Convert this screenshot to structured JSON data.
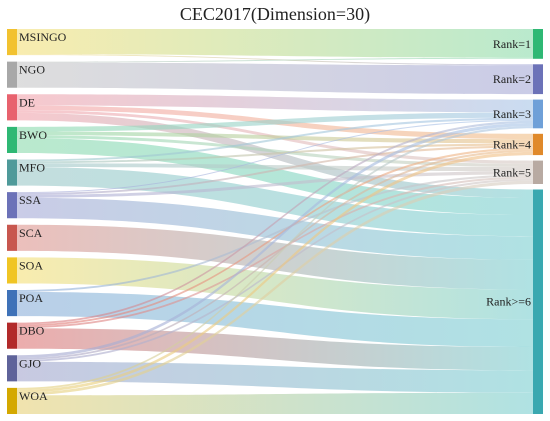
{
  "title": "CEC2017(Dimension=30)",
  "sources": [
    {
      "id": "MSINGO",
      "label": "MSINGO",
      "bar": "#f2c230",
      "band": "#f4e07e"
    },
    {
      "id": "NGO",
      "label": "NGO",
      "bar": "#a8a8a8",
      "band": "#c9c9c9"
    },
    {
      "id": "DE",
      "label": "DE",
      "bar": "#e8626e",
      "band": "#f2a6ae"
    },
    {
      "id": "BWO",
      "label": "BWO",
      "bar": "#2fb874",
      "band": "#8fdcaf"
    },
    {
      "id": "MFO",
      "label": "MFO",
      "bar": "#4f9a9a",
      "band": "#9fcaca"
    },
    {
      "id": "SSA",
      "label": "SSA",
      "bar": "#6c72b8",
      "band": "#a9acd8"
    },
    {
      "id": "SCA",
      "label": "SCA",
      "bar": "#c8574f",
      "band": "#e09892"
    },
    {
      "id": "SOA",
      "label": "SOA",
      "bar": "#f0c524",
      "band": "#f5e07c"
    },
    {
      "id": "POA",
      "label": "POA",
      "bar": "#3f72b8",
      "band": "#8fb1db"
    },
    {
      "id": "DBO",
      "label": "DBO",
      "bar": "#b22a2a",
      "band": "#e07a7a"
    },
    {
      "id": "GJO",
      "label": "GJO",
      "bar": "#5f639a",
      "band": "#a6a8cf"
    },
    {
      "id": "WOA",
      "label": "WOA",
      "bar": "#d4a800",
      "band": "#e8d27c"
    }
  ],
  "targets": [
    {
      "id": "R1",
      "label": "Rank=1",
      "bar": "#2fb874",
      "band": "#8fdcaf"
    },
    {
      "id": "R2",
      "label": "Rank=2",
      "bar": "#6c72b8",
      "band": "#a9acd8"
    },
    {
      "id": "R3",
      "label": "Rank=3",
      "bar": "#6fa0d8",
      "band": "#a9c6e8"
    },
    {
      "id": "R4",
      "label": "Rank=4",
      "bar": "#e0892a",
      "band": "#f1c08a"
    },
    {
      "id": "R5",
      "label": "Rank=5",
      "bar": "#b8aaa2",
      "band": "#d6ccc6"
    },
    {
      "id": "R6",
      "label": "Rank>=6",
      "bar": "#3aa8b0",
      "band": "#7fd0d2"
    }
  ],
  "links": [
    {
      "source": "MSINGO",
      "target": "R1",
      "value": 27
    },
    {
      "source": "MSINGO",
      "target": "R2",
      "value": 1
    },
    {
      "source": "NGO",
      "target": "R2",
      "value": 27
    },
    {
      "source": "NGO",
      "target": "R1",
      "value": 1
    },
    {
      "source": "DE",
      "target": "R3",
      "value": 12
    },
    {
      "source": "DE",
      "target": "R4",
      "value": 5
    },
    {
      "source": "DE",
      "target": "R5",
      "value": 3
    },
    {
      "source": "DE",
      "target": "R6",
      "value": 8
    },
    {
      "source": "BWO",
      "target": "R3",
      "value": 5
    },
    {
      "source": "BWO",
      "target": "R4",
      "value": 4
    },
    {
      "source": "BWO",
      "target": "R5",
      "value": 3
    },
    {
      "source": "BWO",
      "target": "R6",
      "value": 16
    },
    {
      "source": "MFO",
      "target": "R3",
      "value": 2
    },
    {
      "source": "MFO",
      "target": "R4",
      "value": 2
    },
    {
      "source": "MFO",
      "target": "R5",
      "value": 4
    },
    {
      "source": "MFO",
      "target": "R6",
      "value": 20
    },
    {
      "source": "SSA",
      "target": "R3",
      "value": 1
    },
    {
      "source": "SSA",
      "target": "R4",
      "value": 2
    },
    {
      "source": "SSA",
      "target": "R5",
      "value": 3
    },
    {
      "source": "SSA",
      "target": "R6",
      "value": 22
    },
    {
      "source": "SCA",
      "target": "R6",
      "value": 28
    },
    {
      "source": "SOA",
      "target": "R6",
      "value": 28
    },
    {
      "source": "POA",
      "target": "R5",
      "value": 2
    },
    {
      "source": "POA",
      "target": "R6",
      "value": 26
    },
    {
      "source": "DBO",
      "target": "R3",
      "value": 2
    },
    {
      "source": "DBO",
      "target": "R4",
      "value": 2
    },
    {
      "source": "DBO",
      "target": "R5",
      "value": 2
    },
    {
      "source": "DBO",
      "target": "R6",
      "value": 22
    },
    {
      "source": "GJO",
      "target": "R3",
      "value": 3
    },
    {
      "source": "GJO",
      "target": "R4",
      "value": 2
    },
    {
      "source": "GJO",
      "target": "R5",
      "value": 2
    },
    {
      "source": "GJO",
      "target": "R6",
      "value": 21
    },
    {
      "source": "WOA",
      "target": "R3",
      "value": 2
    },
    {
      "source": "WOA",
      "target": "R4",
      "value": 3
    },
    {
      "source": "WOA",
      "target": "R5",
      "value": 3
    },
    {
      "source": "WOA",
      "target": "R6",
      "value": 20
    }
  ]
}
